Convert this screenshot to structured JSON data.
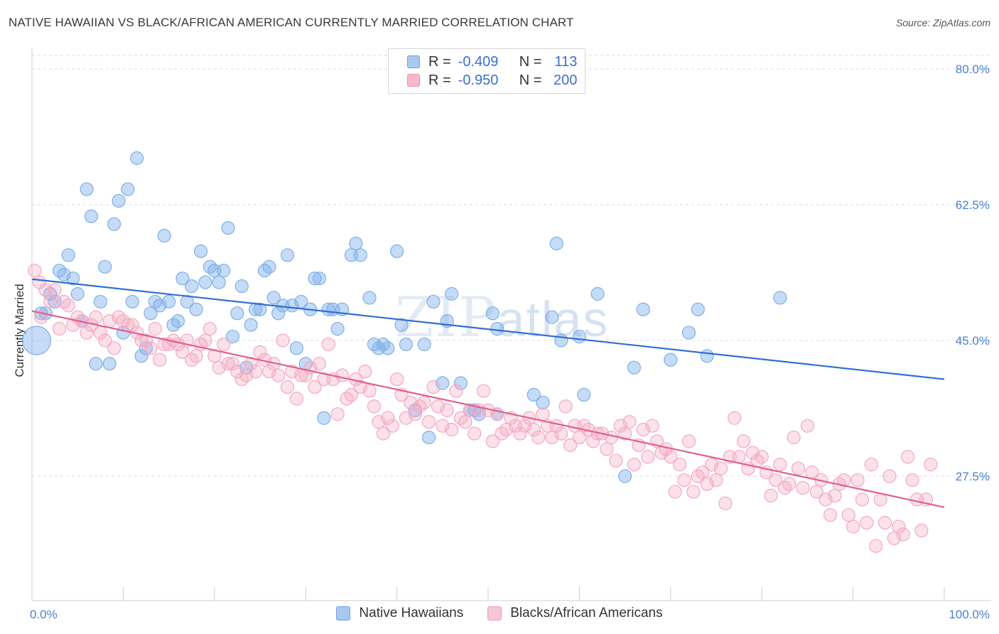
{
  "title": "NATIVE HAWAIIAN VS BLACK/AFRICAN AMERICAN CURRENTLY MARRIED CORRELATION CHART",
  "source": "Source: ZipAtlas.com",
  "watermark": {
    "part1": "ZIP",
    "part2": "atlas"
  },
  "legend": {
    "rows": [
      {
        "r_label": "R =",
        "r_value": "-0.409",
        "n_label": "N =",
        "n_value": "113",
        "color": "#a8c8f0",
        "border": "#6fa0e0"
      },
      {
        "r_label": "R =",
        "r_value": "-0.950",
        "n_label": "N =",
        "n_value": "200",
        "color": "#f7b8cc",
        "border": "#ec8fae"
      }
    ]
  },
  "bottom_legend": [
    {
      "label": "Native Hawaiians",
      "color": "#a8c8f0",
      "border": "#6fa0e0"
    },
    {
      "label": "Blacks/African Americans",
      "color": "#f7c6d5",
      "border": "#ec9ab4"
    }
  ],
  "chart_data": {
    "type": "scatter",
    "title": "NATIVE HAWAIIAN VS BLACK/AFRICAN AMERICAN CURRENTLY MARRIED CORRELATION CHART",
    "xlabel": "",
    "ylabel": "Currently Married",
    "xlim": [
      0,
      100
    ],
    "ylim": [
      10,
      83
    ],
    "x_tick_labels": [
      "0.0%",
      "100.0%"
    ],
    "y_ticks": [
      27.5,
      45.0,
      62.5,
      80.0
    ],
    "y_tick_labels": [
      "27.5%",
      "45.0%",
      "62.5%",
      "80.0%"
    ],
    "series": [
      {
        "name": "Native Hawaiians",
        "color": "#7fb0ea",
        "line_color": "#2f6fd4",
        "trend": {
          "x0": 0,
          "y0": 52.9,
          "x1": 100,
          "y1": 40.0
        },
        "points": [
          [
            0.5,
            45.0
          ],
          [
            1.0,
            48.5
          ],
          [
            1.5,
            48.5
          ],
          [
            2,
            51
          ],
          [
            2.5,
            50
          ],
          [
            3,
            54
          ],
          [
            3.5,
            53.5
          ],
          [
            4,
            56
          ],
          [
            4.5,
            53
          ],
          [
            5,
            51
          ],
          [
            5.5,
            47.5
          ],
          [
            6,
            64.5
          ],
          [
            6.5,
            61
          ],
          [
            7,
            42
          ],
          [
            7.5,
            50
          ],
          [
            8,
            54.5
          ],
          [
            8.5,
            42
          ],
          [
            9,
            60
          ],
          [
            9.5,
            63
          ],
          [
            10,
            46
          ],
          [
            10.5,
            64.5
          ],
          [
            11,
            50
          ],
          [
            11.5,
            68.5
          ],
          [
            12,
            43
          ],
          [
            12.5,
            44
          ],
          [
            13,
            48.5
          ],
          [
            13.5,
            50
          ],
          [
            14,
            49.5
          ],
          [
            14.5,
            58.5
          ],
          [
            15,
            50
          ],
          [
            15.5,
            47
          ],
          [
            16,
            47.5
          ],
          [
            16.5,
            53
          ],
          [
            17,
            50
          ],
          [
            17.5,
            52
          ],
          [
            18,
            49
          ],
          [
            18.5,
            56.5
          ],
          [
            19,
            52.5
          ],
          [
            19.5,
            54.5
          ],
          [
            20,
            54
          ],
          [
            20.5,
            52.5
          ],
          [
            21,
            54
          ],
          [
            21.5,
            59.5
          ],
          [
            22,
            45.5
          ],
          [
            22.5,
            48.5
          ],
          [
            23,
            52
          ],
          [
            23.5,
            41.5
          ],
          [
            24,
            47
          ],
          [
            24.5,
            49
          ],
          [
            25,
            49
          ],
          [
            25.5,
            54
          ],
          [
            26,
            54.5
          ],
          [
            26.5,
            50.5
          ],
          [
            27,
            48.5
          ],
          [
            27.5,
            49.5
          ],
          [
            28,
            56
          ],
          [
            28.5,
            49.5
          ],
          [
            29,
            44
          ],
          [
            29.5,
            50
          ],
          [
            30,
            42
          ],
          [
            30.5,
            49
          ],
          [
            31,
            53
          ],
          [
            31.5,
            53
          ],
          [
            32,
            35
          ],
          [
            32.5,
            49
          ],
          [
            33,
            49
          ],
          [
            33.5,
            46.5
          ],
          [
            34,
            49
          ],
          [
            35,
            56
          ],
          [
            35.5,
            57.5
          ],
          [
            36,
            56
          ],
          [
            37,
            50.5
          ],
          [
            37.5,
            44.5
          ],
          [
            38,
            44
          ],
          [
            38.5,
            44.5
          ],
          [
            39,
            44
          ],
          [
            40,
            56.5
          ],
          [
            40.5,
            47
          ],
          [
            41,
            44.5
          ],
          [
            42,
            36
          ],
          [
            43,
            44.5
          ],
          [
            43.5,
            32.5
          ],
          [
            44,
            50
          ],
          [
            45,
            39.5
          ],
          [
            45.5,
            47.5
          ],
          [
            46,
            51
          ],
          [
            47,
            39.5
          ],
          [
            48,
            36
          ],
          [
            48.5,
            36
          ],
          [
            49,
            35.5
          ],
          [
            50.5,
            48.5
          ],
          [
            51,
            46.5
          ],
          [
            51,
            35.5
          ],
          [
            55,
            38
          ],
          [
            56,
            37
          ],
          [
            57,
            48
          ],
          [
            57.5,
            57.5
          ],
          [
            58,
            45
          ],
          [
            60,
            45.5
          ],
          [
            60.5,
            38
          ],
          [
            62,
            51
          ],
          [
            65,
            27.5
          ],
          [
            66,
            41.5
          ],
          [
            67,
            49
          ],
          [
            70,
            42.5
          ],
          [
            72,
            46
          ],
          [
            73,
            49
          ],
          [
            74,
            43
          ],
          [
            82,
            50.5
          ]
        ]
      },
      {
        "name": "Blacks/African Americans",
        "color": "#f4a8c0",
        "line_color": "#e0608e",
        "trend": {
          "x0": 0,
          "y0": 48.8,
          "x1": 100,
          "y1": 23.5
        },
        "points": [
          [
            0.3,
            54
          ],
          [
            0.8,
            52.5
          ],
          [
            1,
            48
          ],
          [
            1.5,
            51.5
          ],
          [
            2,
            50
          ],
          [
            2.5,
            51.5
          ],
          [
            3,
            46.5
          ],
          [
            3.5,
            50
          ],
          [
            4,
            49.5
          ],
          [
            4.5,
            47
          ],
          [
            5,
            48
          ],
          [
            5.5,
            47.5
          ],
          [
            6,
            46
          ],
          [
            6.5,
            47
          ],
          [
            7,
            48
          ],
          [
            7.5,
            46
          ],
          [
            8,
            45
          ],
          [
            8.5,
            47.5
          ],
          [
            9,
            44
          ],
          [
            9.5,
            48
          ],
          [
            10,
            47.5
          ],
          [
            10.5,
            47
          ],
          [
            11,
            47
          ],
          [
            11.5,
            46
          ],
          [
            12,
            45
          ],
          [
            12.5,
            45
          ],
          [
            13,
            44
          ],
          [
            13.5,
            46.5
          ],
          [
            14,
            42.5
          ],
          [
            14.5,
            44.5
          ],
          [
            15,
            44.5
          ],
          [
            15.5,
            45
          ],
          [
            16,
            44.5
          ],
          [
            16.5,
            43.5
          ],
          [
            17,
            45
          ],
          [
            17.5,
            42.5
          ],
          [
            18,
            43
          ],
          [
            18.5,
            44.5
          ],
          [
            19,
            45
          ],
          [
            19.5,
            46.5
          ],
          [
            20,
            43
          ],
          [
            20.5,
            41.5
          ],
          [
            21,
            44.5
          ],
          [
            21.5,
            42
          ],
          [
            22,
            42
          ],
          [
            22.5,
            41
          ],
          [
            23,
            40
          ],
          [
            23.5,
            40.5
          ],
          [
            24,
            42
          ],
          [
            24.5,
            41
          ],
          [
            25,
            43.5
          ],
          [
            25.5,
            42.5
          ],
          [
            26,
            41
          ],
          [
            26.5,
            42
          ],
          [
            27,
            40.5
          ],
          [
            27.5,
            45
          ],
          [
            28,
            39
          ],
          [
            28.5,
            41
          ],
          [
            29,
            37.5
          ],
          [
            29.5,
            40.5
          ],
          [
            30,
            40.5
          ],
          [
            30.5,
            41.5
          ],
          [
            31,
            39
          ],
          [
            31.5,
            42
          ],
          [
            32,
            40
          ],
          [
            32.5,
            44.5
          ],
          [
            33,
            40
          ],
          [
            33.5,
            35.5
          ],
          [
            34,
            40.5
          ],
          [
            34.5,
            37.5
          ],
          [
            35,
            38
          ],
          [
            35.5,
            40
          ],
          [
            36,
            39
          ],
          [
            36.5,
            41
          ],
          [
            37,
            38.5
          ],
          [
            37.5,
            36.5
          ],
          [
            38,
            34.5
          ],
          [
            38.5,
            33
          ],
          [
            39,
            35
          ],
          [
            39.5,
            34
          ],
          [
            40,
            40
          ],
          [
            40.5,
            38
          ],
          [
            41,
            35
          ],
          [
            41.5,
            37
          ],
          [
            42,
            35.5
          ],
          [
            42.5,
            36.5
          ],
          [
            43,
            37
          ],
          [
            43.5,
            34.5
          ],
          [
            44,
            39
          ],
          [
            44.5,
            36.5
          ],
          [
            45,
            34
          ],
          [
            45.5,
            36
          ],
          [
            46,
            33.5
          ],
          [
            46.5,
            38.5
          ],
          [
            47,
            35
          ],
          [
            47.5,
            34.5
          ],
          [
            48,
            36
          ],
          [
            48.5,
            33
          ],
          [
            49,
            36
          ],
          [
            49.5,
            38.5
          ],
          [
            50,
            36
          ],
          [
            50.5,
            32
          ],
          [
            51,
            35.5
          ],
          [
            51.5,
            33
          ],
          [
            52,
            33.5
          ],
          [
            52.5,
            35
          ],
          [
            53,
            34
          ],
          [
            53.5,
            33
          ],
          [
            54,
            34
          ],
          [
            54.5,
            35
          ],
          [
            55,
            33.5
          ],
          [
            55.5,
            32.5
          ],
          [
            56,
            35.5
          ],
          [
            56.5,
            34
          ],
          [
            57,
            32.5
          ],
          [
            57.5,
            34
          ],
          [
            58,
            33
          ],
          [
            58.5,
            36.5
          ],
          [
            59,
            31.5
          ],
          [
            59.5,
            34
          ],
          [
            60,
            32.5
          ],
          [
            60.5,
            34
          ],
          [
            61,
            33.5
          ],
          [
            61.5,
            32
          ],
          [
            62,
            33
          ],
          [
            62.5,
            33
          ],
          [
            63,
            31
          ],
          [
            63.5,
            32.5
          ],
          [
            64,
            29.5
          ],
          [
            64.5,
            34
          ],
          [
            65,
            33
          ],
          [
            65.5,
            34.5
          ],
          [
            66,
            29
          ],
          [
            66.5,
            31.5
          ],
          [
            67,
            33.5
          ],
          [
            67.5,
            30
          ],
          [
            68,
            34
          ],
          [
            68.5,
            32
          ],
          [
            69,
            30.5
          ],
          [
            69.5,
            31
          ],
          [
            70,
            30
          ],
          [
            70.5,
            25.5
          ],
          [
            71,
            29
          ],
          [
            71.5,
            27
          ],
          [
            72,
            32
          ],
          [
            72.5,
            25.5
          ],
          [
            73,
            27.5
          ],
          [
            73.5,
            28
          ],
          [
            74,
            26.5
          ],
          [
            74.5,
            29
          ],
          [
            75,
            27
          ],
          [
            75.5,
            28.5
          ],
          [
            76,
            24
          ],
          [
            76.5,
            30
          ],
          [
            77,
            35
          ],
          [
            77.5,
            30
          ],
          [
            78,
            32
          ],
          [
            78.5,
            28.5
          ],
          [
            79,
            30.5
          ],
          [
            79.5,
            29.5
          ],
          [
            80,
            30
          ],
          [
            80.5,
            28
          ],
          [
            81,
            25
          ],
          [
            81.5,
            27
          ],
          [
            82,
            29
          ],
          [
            82.5,
            26
          ],
          [
            83,
            26.5
          ],
          [
            83.5,
            32.5
          ],
          [
            84,
            28.5
          ],
          [
            84.5,
            26
          ],
          [
            85,
            34
          ],
          [
            85.5,
            28
          ],
          [
            86,
            25.5
          ],
          [
            86.5,
            27
          ],
          [
            87,
            24.5
          ],
          [
            87.5,
            22.5
          ],
          [
            88,
            25
          ],
          [
            88.5,
            26.5
          ],
          [
            89,
            27
          ],
          [
            89.5,
            22.5
          ],
          [
            90,
            21
          ],
          [
            90.5,
            27
          ],
          [
            91,
            24.5
          ],
          [
            91.5,
            21.5
          ],
          [
            92,
            29
          ],
          [
            92.5,
            18.5
          ],
          [
            93,
            24.5
          ],
          [
            93.5,
            21.5
          ],
          [
            94,
            27.5
          ],
          [
            94.5,
            19.5
          ],
          [
            95,
            21
          ],
          [
            95.5,
            20
          ],
          [
            96,
            30
          ],
          [
            96.5,
            27
          ],
          [
            97,
            24.5
          ],
          [
            97.5,
            20.5
          ],
          [
            98,
            24.5
          ],
          [
            98.5,
            29
          ]
        ]
      }
    ]
  }
}
